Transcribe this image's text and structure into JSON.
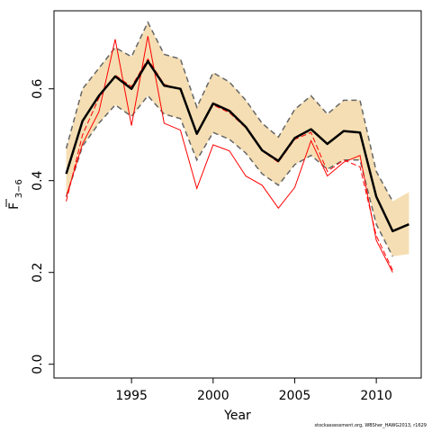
{
  "chart_data": {
    "type": "line",
    "xlabel": "Year",
    "ylabel": "F",
    "ylabel_sub": "3−6",
    "xlim": [
      1990.25,
      2012.75
    ],
    "ylim": [
      -0.03,
      0.77
    ],
    "x_ticks": [
      1995,
      2000,
      2005,
      2010
    ],
    "y_ticks": [
      0.0,
      0.2,
      0.4,
      0.6
    ],
    "x_tick_labels": [
      "1995",
      "2000",
      "2005",
      "2010"
    ],
    "y_tick_labels": [
      "0.0",
      "0.2",
      "0.4",
      "0.6"
    ],
    "grid": false,
    "legend": "none",
    "colors": {
      "band": "#f5deb3",
      "estimate": "#000000",
      "bounds": "#666666",
      "retro": "#ff0000"
    },
    "x": [
      1991,
      1992,
      1993,
      1994,
      1995,
      1996,
      1997,
      1998,
      1999,
      2000,
      2001,
      2002,
      2003,
      2004,
      2005,
      2006,
      2007,
      2008,
      2009,
      2010,
      2011,
      2012
    ],
    "series": [
      {
        "role": "estimate",
        "values": [
          0.415,
          0.53,
          0.585,
          0.627,
          0.6,
          0.66,
          0.607,
          0.6,
          0.502,
          0.568,
          0.552,
          0.517,
          0.466,
          0.443,
          0.493,
          0.512,
          0.48,
          0.508,
          0.505,
          0.365,
          0.29,
          0.305
        ]
      },
      {
        "role": "upper",
        "values": [
          0.47,
          0.6,
          0.645,
          0.69,
          0.67,
          0.745,
          0.675,
          0.665,
          0.56,
          0.635,
          0.615,
          0.575,
          0.525,
          0.495,
          0.555,
          0.585,
          0.545,
          0.575,
          0.575,
          0.42,
          0.355,
          0.375
        ]
      },
      {
        "role": "lower",
        "values": [
          0.365,
          0.475,
          0.525,
          0.565,
          0.54,
          0.585,
          0.545,
          0.535,
          0.445,
          0.505,
          0.49,
          0.46,
          0.415,
          0.39,
          0.435,
          0.455,
          0.425,
          0.445,
          0.445,
          0.305,
          0.235,
          0.24
        ]
      },
      {
        "role": "retro-end-2011",
        "values": [
          0.355,
          0.5,
          0.58,
          0.63,
          0.605,
          0.665,
          0.61,
          0.598,
          0.505,
          0.565,
          0.548,
          0.515,
          0.465,
          0.44,
          0.49,
          0.505,
          0.42,
          0.445,
          0.43,
          0.28,
          0.205,
          null
        ]
      },
      {
        "role": "retro-end-2012",
        "values": [
          0.365,
          0.48,
          0.55,
          0.708,
          0.52,
          0.715,
          0.525,
          0.51,
          0.383,
          0.478,
          0.465,
          0.41,
          0.39,
          0.34,
          0.385,
          0.487,
          0.41,
          0.44,
          0.455,
          0.27,
          0.2,
          null
        ]
      }
    ]
  },
  "footer": {
    "credit": "stockassessment.org, WBSher_HAWG2013, r1629"
  }
}
